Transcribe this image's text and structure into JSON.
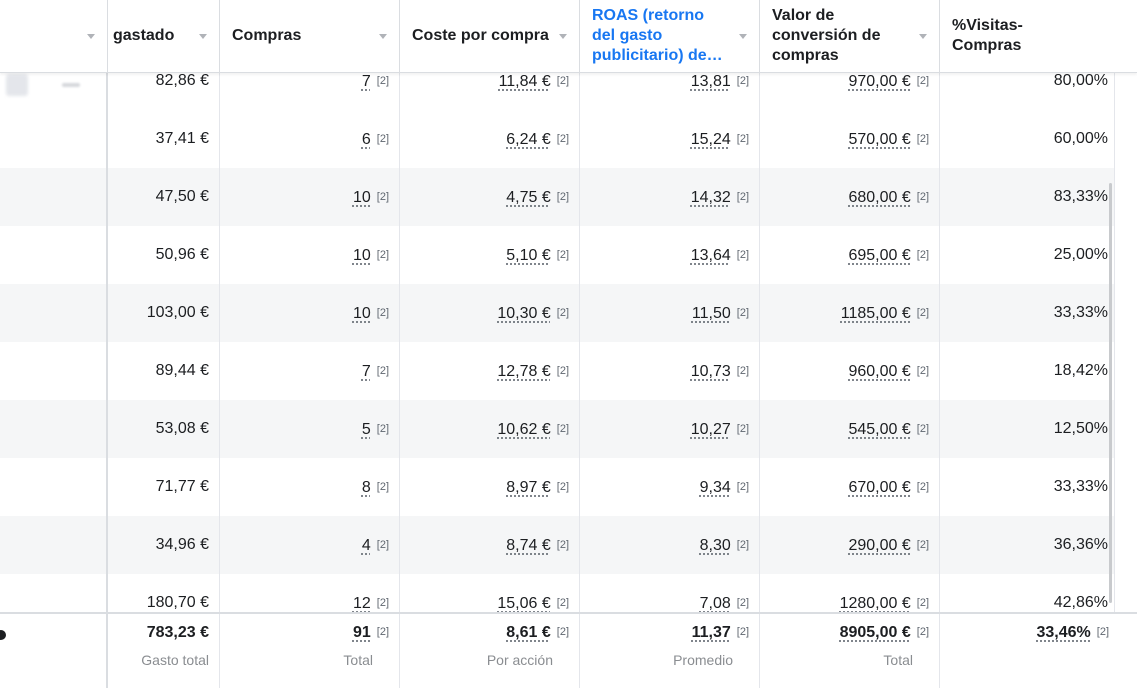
{
  "header": {
    "columns": [
      {
        "label": ""
      },
      {
        "label": "gastado"
      },
      {
        "label": "Compras"
      },
      {
        "label": "Coste por compra"
      },
      {
        "label": "ROAS (retorno del gasto publicitario) de…"
      },
      {
        "label": "Valor de conversión de compras"
      },
      {
        "label": "%Visitas-Compras"
      }
    ]
  },
  "partial_row": {
    "spent": "82,86 €",
    "purchases": "7",
    "cost": "11,84 €",
    "roas": "13,81",
    "value": "970,00 €",
    "rate": "80,00%"
  },
  "rows": [
    {
      "spent": "37,41 €",
      "purchases": "6",
      "cost": "6,24 €",
      "roas": "15,24",
      "value": "570,00 €",
      "rate": "60,00%"
    },
    {
      "spent": "47,50 €",
      "purchases": "10",
      "cost": "4,75 €",
      "roas": "14,32",
      "value": "680,00 €",
      "rate": "83,33%"
    },
    {
      "spent": "50,96 €",
      "purchases": "10",
      "cost": "5,10 €",
      "roas": "13,64",
      "value": "695,00 €",
      "rate": "25,00%"
    },
    {
      "spent": "103,00 €",
      "purchases": "10",
      "cost": "10,30 €",
      "roas": "11,50",
      "value": "1185,00 €",
      "rate": "33,33%"
    },
    {
      "spent": "89,44 €",
      "purchases": "7",
      "cost": "12,78 €",
      "roas": "10,73",
      "value": "960,00 €",
      "rate": "18,42%"
    },
    {
      "spent": "53,08 €",
      "purchases": "5",
      "cost": "10,62 €",
      "roas": "10,27",
      "value": "545,00 €",
      "rate": "12,50%"
    },
    {
      "spent": "71,77 €",
      "purchases": "8",
      "cost": "8,97 €",
      "roas": "9,34",
      "value": "670,00 €",
      "rate": "33,33%"
    },
    {
      "spent": "34,96 €",
      "purchases": "4",
      "cost": "8,74 €",
      "roas": "8,30",
      "value": "290,00 €",
      "rate": "36,36%"
    },
    {
      "spent": "180,70 €",
      "purchases": "12",
      "cost": "15,06 €",
      "roas": "7,08",
      "value": "1280,00 €",
      "rate": "42,86%"
    }
  ],
  "footnote": "[2]",
  "totals": {
    "spent": {
      "value": "783,23 €",
      "label": "Gasto total"
    },
    "purchases": {
      "value": "91",
      "label": "Total"
    },
    "cost": {
      "value": "8,61 €",
      "label": "Por acción"
    },
    "roas": {
      "value": "11,37",
      "label": "Promedio"
    },
    "value": {
      "value": "8905,00 €",
      "label": "Total"
    },
    "rate": {
      "value": "33,46%",
      "label": ""
    }
  },
  "colors": {
    "accent": "#1877f2",
    "text": "#1c1e21",
    "muted": "#8a8d91",
    "row_alt": "#f5f6f7"
  }
}
